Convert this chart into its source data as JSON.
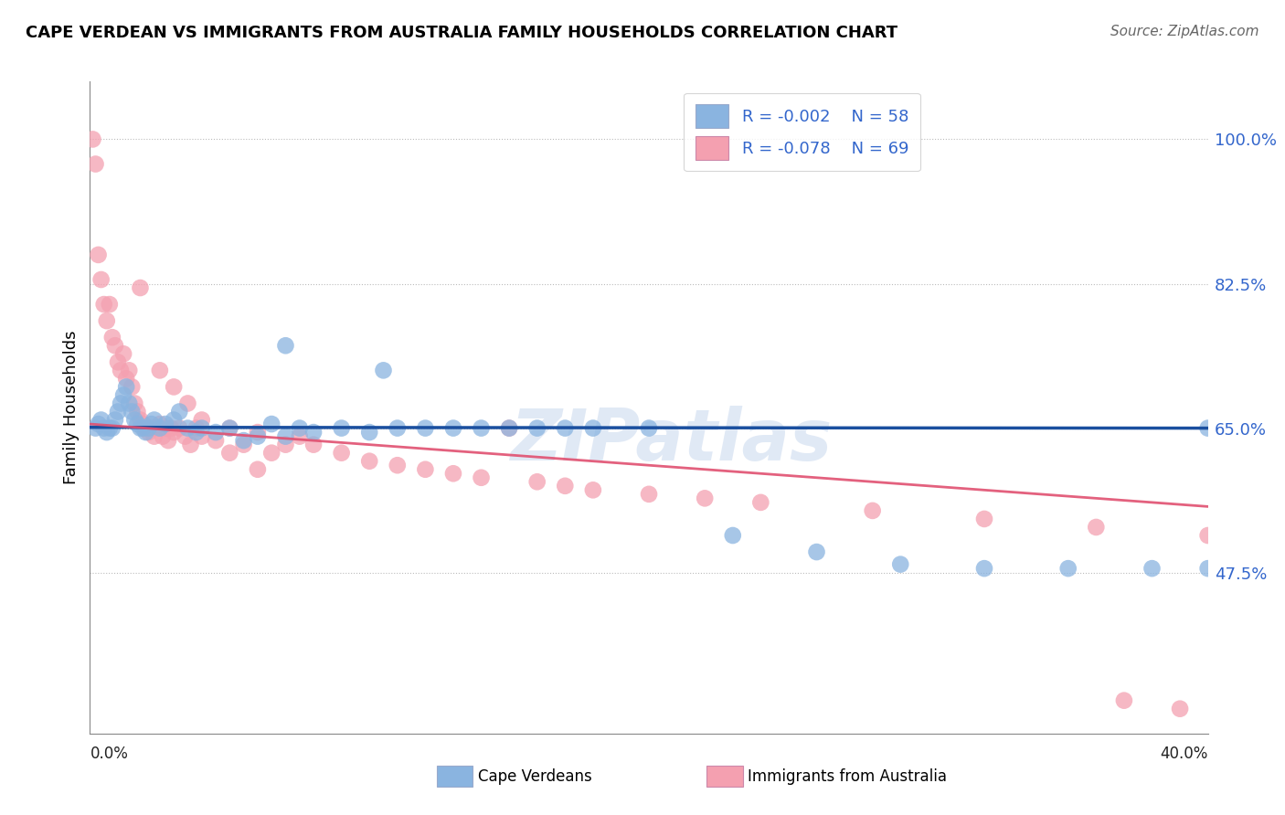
{
  "title": "CAPE VERDEAN VS IMMIGRANTS FROM AUSTRALIA FAMILY HOUSEHOLDS CORRELATION CHART",
  "source": "Source: ZipAtlas.com",
  "ylabel": "Family Households",
  "yticks": [
    47.5,
    65.0,
    82.5,
    100.0
  ],
  "ytick_labels": [
    "47.5%",
    "65.0%",
    "82.5%",
    "100.0%"
  ],
  "xlim": [
    0.0,
    40.0
  ],
  "ylim": [
    28.0,
    107.0
  ],
  "legend_r1": "R = -0.002",
  "legend_n1": "N = 58",
  "legend_r2": "R = -0.078",
  "legend_n2": "N = 69",
  "color_blue": "#8ab4e0",
  "color_blue_line": "#1A4F9F",
  "color_pink": "#f4a0b0",
  "color_pink_line": "#e05070",
  "color_text_blue": "#3366CC",
  "background_color": "#FFFFFF",
  "blue_x": [
    0.2,
    0.3,
    0.4,
    0.5,
    0.6,
    0.7,
    0.8,
    0.9,
    1.0,
    1.1,
    1.2,
    1.3,
    1.4,
    1.5,
    1.6,
    1.7,
    1.8,
    1.9,
    2.0,
    2.1,
    2.2,
    2.3,
    2.5,
    2.7,
    3.0,
    3.2,
    3.5,
    3.8,
    4.0,
    4.5,
    5.0,
    5.5,
    6.0,
    6.5,
    7.0,
    7.5,
    8.0,
    9.0,
    10.0,
    11.0,
    12.0,
    14.0,
    16.0,
    18.0,
    20.0,
    23.0,
    26.0,
    29.0,
    32.0,
    35.0,
    38.0,
    40.0,
    40.0,
    7.0,
    10.5,
    13.0,
    15.0,
    17.0
  ],
  "blue_y": [
    65.0,
    65.5,
    66.0,
    65.0,
    64.5,
    65.0,
    65.0,
    66.0,
    67.0,
    68.0,
    69.0,
    70.0,
    68.0,
    67.0,
    66.0,
    65.5,
    65.0,
    65.0,
    64.5,
    65.0,
    65.5,
    66.0,
    65.0,
    65.5,
    66.0,
    67.0,
    65.0,
    64.5,
    65.0,
    64.5,
    65.0,
    63.5,
    64.0,
    65.5,
    64.0,
    65.0,
    64.5,
    65.0,
    64.5,
    65.0,
    65.0,
    65.0,
    65.0,
    65.0,
    65.0,
    52.0,
    50.0,
    48.5,
    48.0,
    48.0,
    48.0,
    48.0,
    65.0,
    75.0,
    72.0,
    65.0,
    65.0,
    65.0
  ],
  "pink_x": [
    0.1,
    0.2,
    0.3,
    0.4,
    0.5,
    0.6,
    0.7,
    0.8,
    0.9,
    1.0,
    1.1,
    1.2,
    1.3,
    1.4,
    1.5,
    1.6,
    1.7,
    1.8,
    1.9,
    2.0,
    2.1,
    2.2,
    2.3,
    2.4,
    2.5,
    2.6,
    2.7,
    2.8,
    2.9,
    3.0,
    3.2,
    3.4,
    3.6,
    3.8,
    4.0,
    4.5,
    5.0,
    5.5,
    6.0,
    6.5,
    7.0,
    7.5,
    8.0,
    9.0,
    10.0,
    11.0,
    12.0,
    13.0,
    14.0,
    15.0,
    16.0,
    17.0,
    18.0,
    20.0,
    22.0,
    24.0,
    28.0,
    32.0,
    36.0,
    40.0,
    1.8,
    2.5,
    3.0,
    3.5,
    4.0,
    5.0,
    6.0,
    37.0,
    39.0
  ],
  "pink_y": [
    100.0,
    97.0,
    86.0,
    83.0,
    80.0,
    78.0,
    80.0,
    76.0,
    75.0,
    73.0,
    72.0,
    74.0,
    71.0,
    72.0,
    70.0,
    68.0,
    67.0,
    66.0,
    65.5,
    65.0,
    64.5,
    65.0,
    64.0,
    65.0,
    65.5,
    64.0,
    65.0,
    63.5,
    65.0,
    64.5,
    65.0,
    64.0,
    63.0,
    65.0,
    64.0,
    63.5,
    65.0,
    63.0,
    64.5,
    62.0,
    63.0,
    64.0,
    63.0,
    62.0,
    61.0,
    60.5,
    60.0,
    59.5,
    59.0,
    65.0,
    58.5,
    58.0,
    57.5,
    57.0,
    56.5,
    56.0,
    55.0,
    54.0,
    53.0,
    52.0,
    82.0,
    72.0,
    70.0,
    68.0,
    66.0,
    62.0,
    60.0,
    32.0,
    31.0
  ],
  "blue_reg_x0": 0.0,
  "blue_reg_y0": 65.1,
  "blue_reg_x1": 40.0,
  "blue_reg_y1": 65.0,
  "pink_reg_x0": 0.0,
  "pink_reg_y0": 65.5,
  "pink_reg_x1": 40.0,
  "pink_reg_y1": 55.5,
  "pink_solid_end": 40.0
}
